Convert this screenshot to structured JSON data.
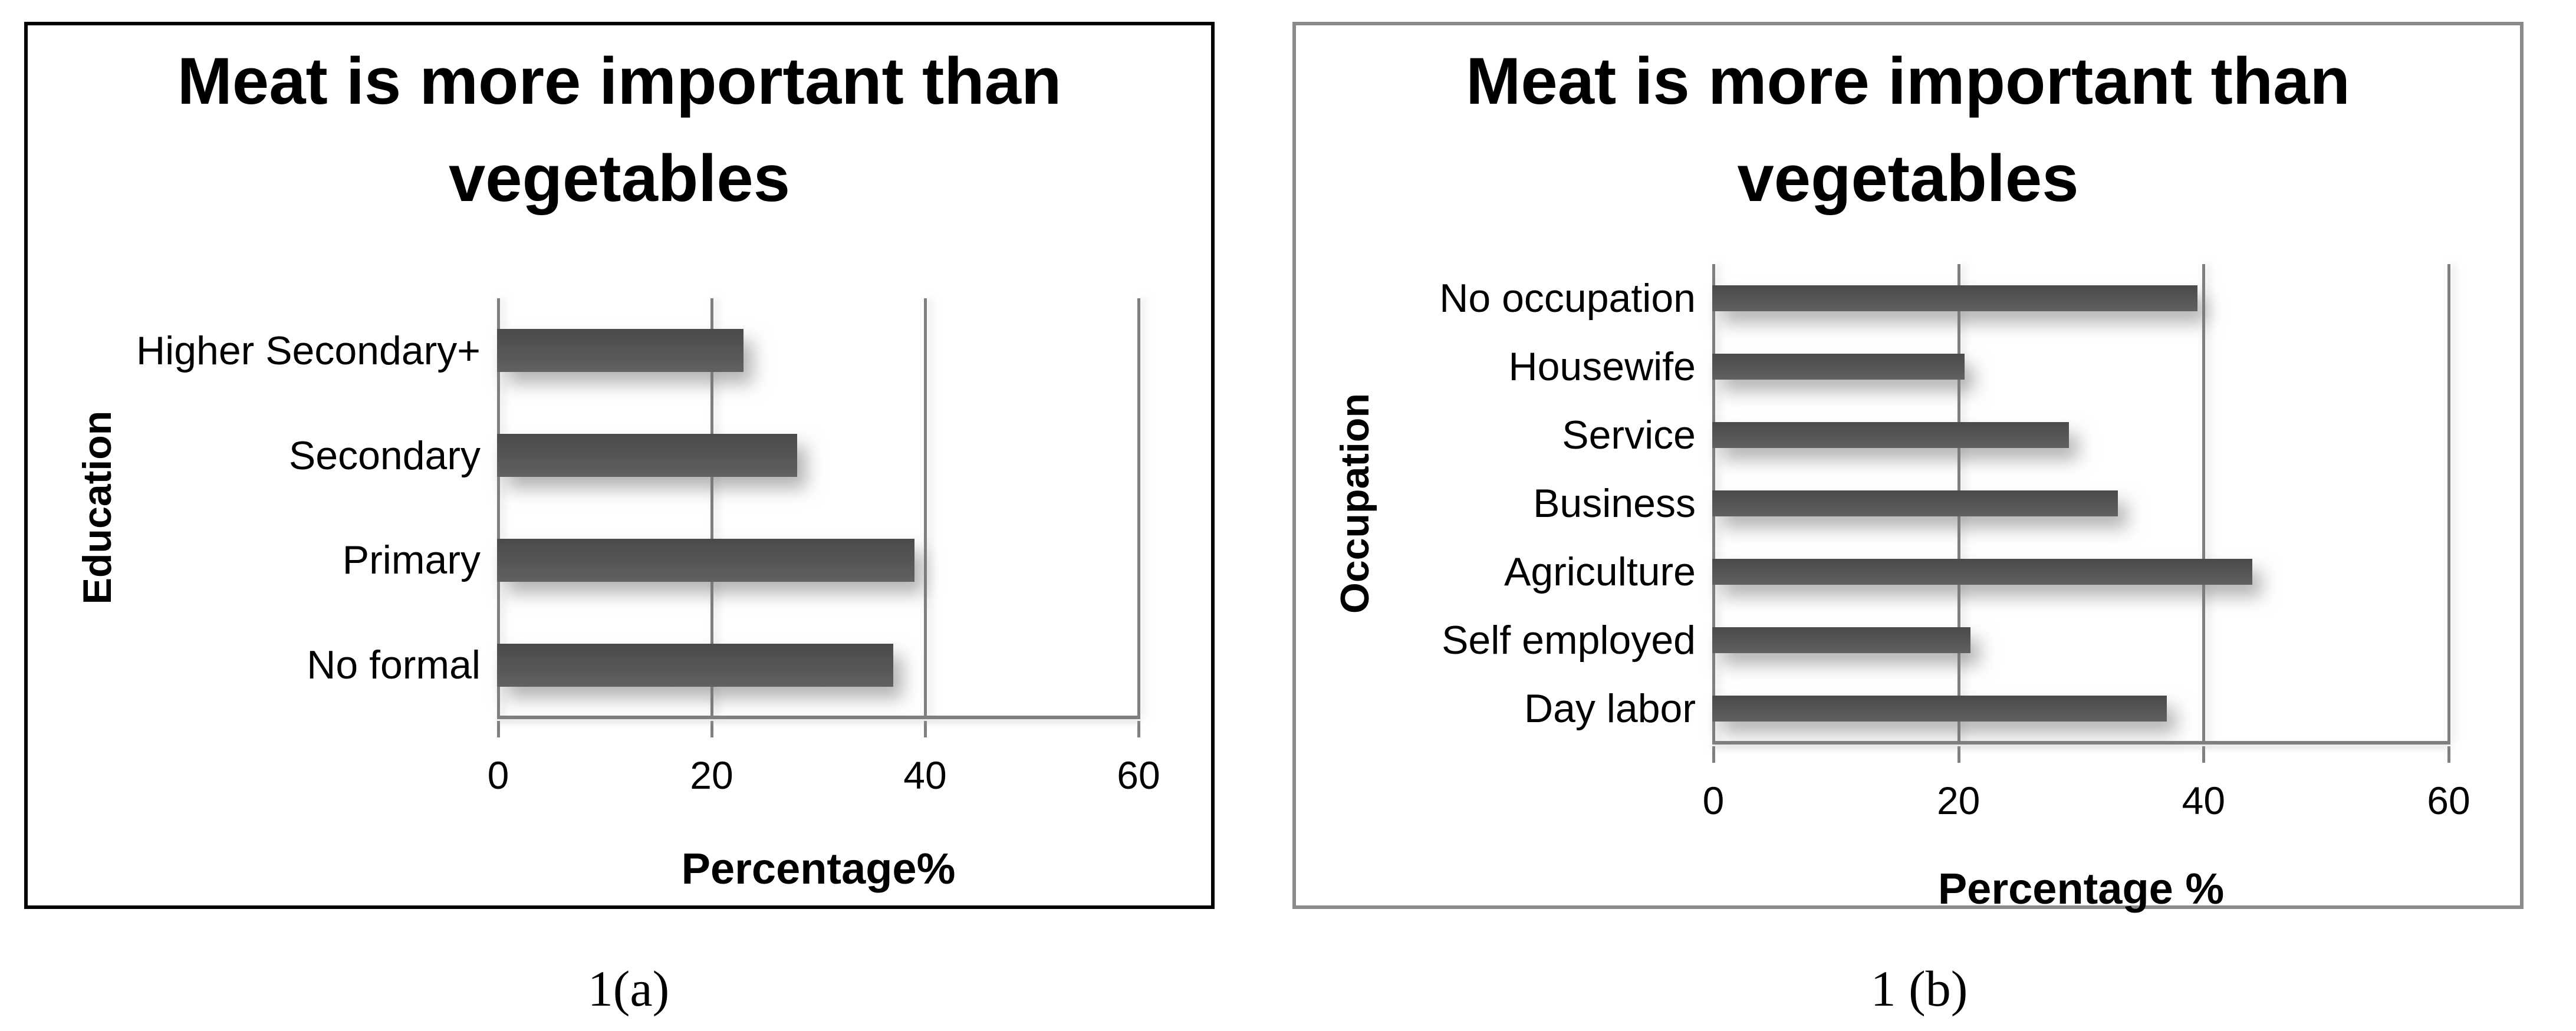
{
  "chart_data": [
    {
      "type": "bar",
      "orientation": "horizontal",
      "title": "Meat is more important than vegetables",
      "ylabel": "Education",
      "xlabel": "Percentage%",
      "caption": "1(a)",
      "categories": [
        "Higher Secondary+",
        "Secondary",
        "Primary",
        "No formal"
      ],
      "values": [
        23,
        28,
        39,
        37
      ],
      "x_ticks": [
        0,
        20,
        40,
        60
      ],
      "xlim": [
        0,
        60
      ],
      "grid": true,
      "legend": "none"
    },
    {
      "type": "bar",
      "orientation": "horizontal",
      "title": "Meat is more important than vegetables",
      "ylabel": "Occupation",
      "xlabel": "Percentage %",
      "caption": "1 (b)",
      "categories": [
        "No occupation",
        "Housewife",
        "Service",
        "Business",
        "Agriculture",
        "Self employed",
        "Day labor"
      ],
      "values": [
        39.5,
        20.5,
        29,
        33,
        44,
        21,
        37
      ],
      "x_ticks": [
        0,
        20,
        40,
        60
      ],
      "xlim": [
        0,
        60
      ],
      "grid": true,
      "legend": "none"
    }
  ],
  "colors": {
    "bar_gradient_top": "#4a4a4a",
    "bar_gradient_bottom": "#616161",
    "gridline": "#7f7f7f",
    "panel_a_border": "#000000",
    "panel_b_border": "#8a8a8a",
    "text": "#000000",
    "background": "#ffffff"
  }
}
